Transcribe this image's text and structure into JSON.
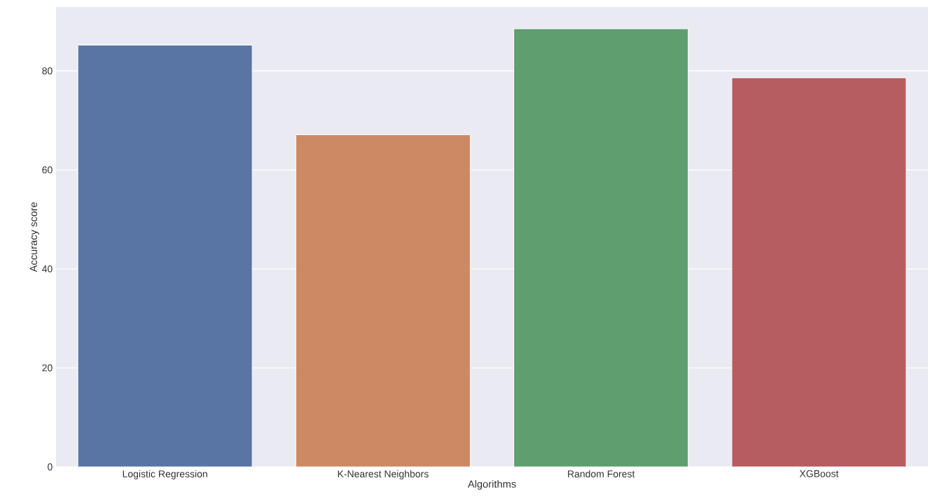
{
  "chart_data": {
    "type": "bar",
    "xlabel": "Algorithms",
    "ylabel": "Accuracy score",
    "categories": [
      "Logistic Regression",
      "K-Nearest Neighbors",
      "Random Forest",
      "XGBoost"
    ],
    "values": [
      85.2,
      67.1,
      88.5,
      78.6
    ],
    "colors": [
      "#5875a4",
      "#cc8963",
      "#5f9e6e",
      "#b55d60"
    ],
    "ylim": [
      0,
      92.9
    ],
    "yticks": [
      0,
      20,
      40,
      60,
      80
    ],
    "grid": "y"
  }
}
